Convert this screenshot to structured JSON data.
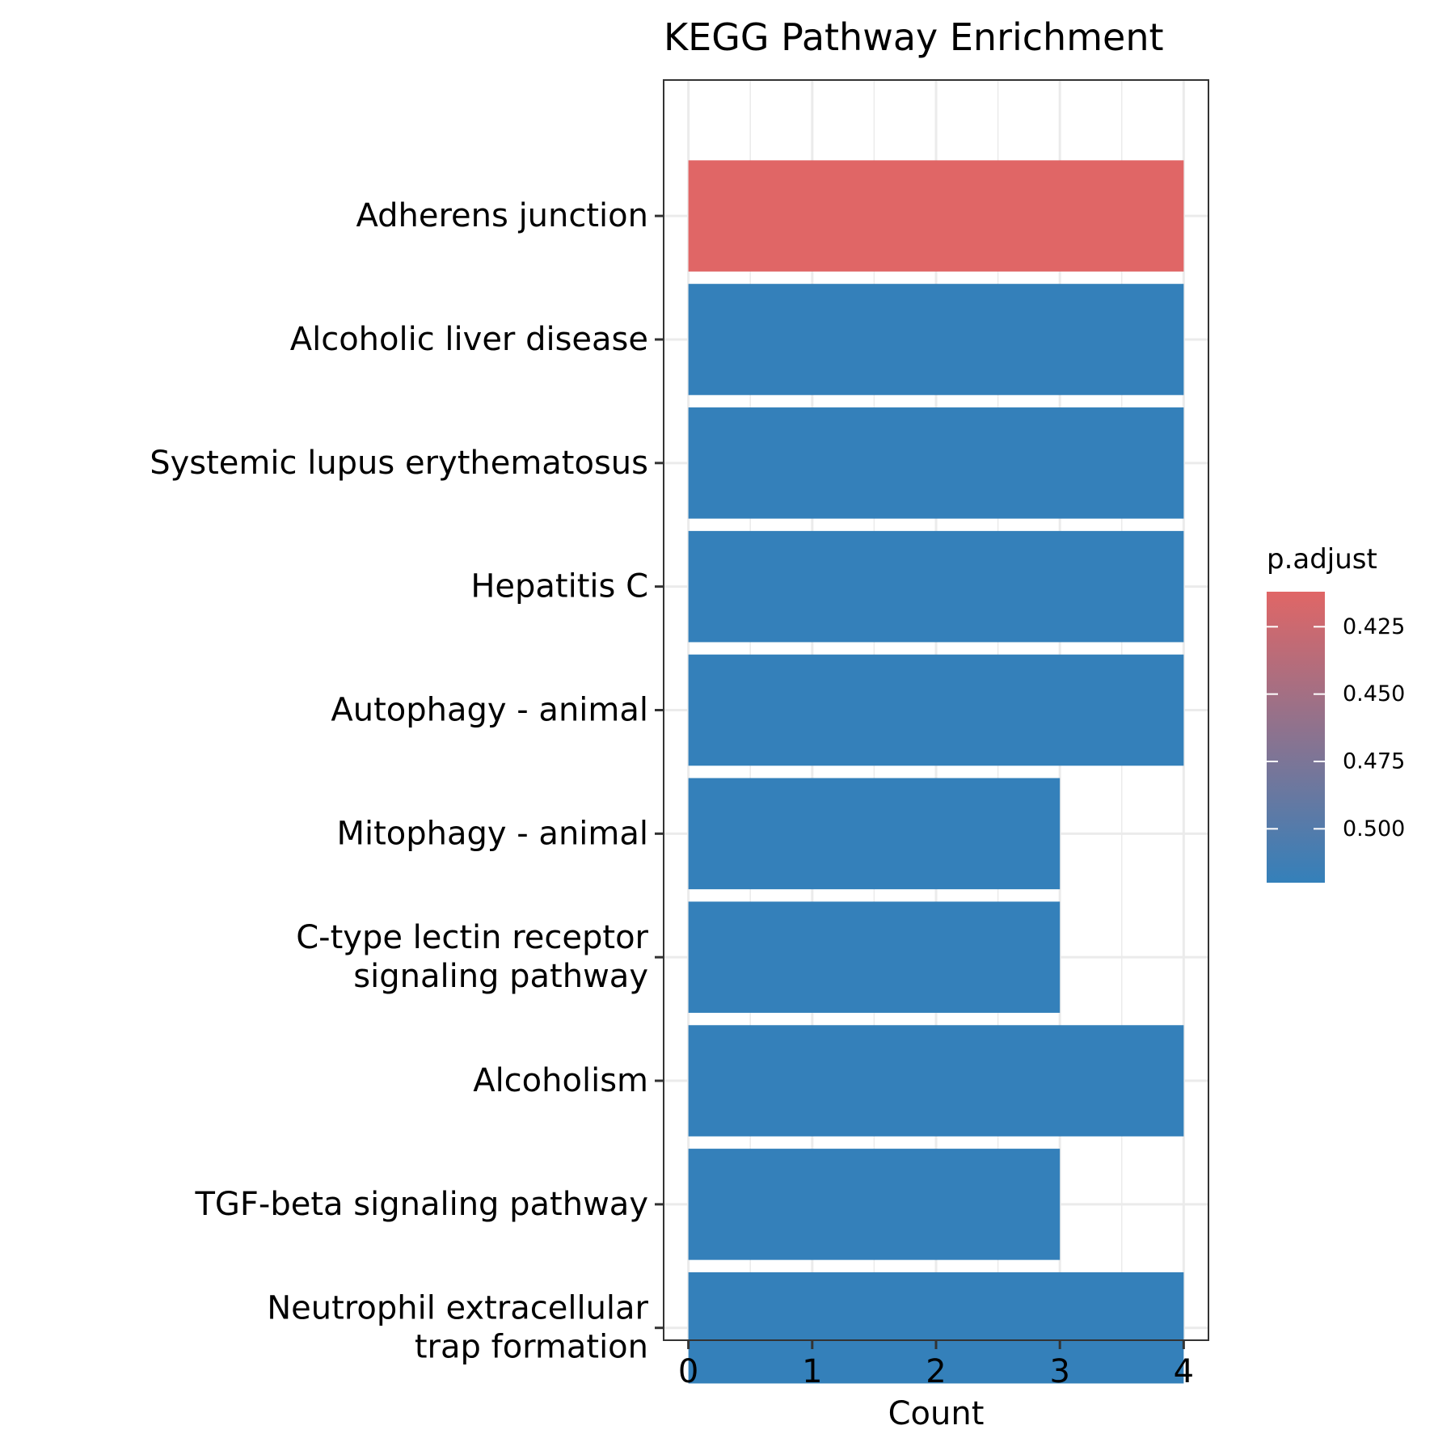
{
  "chart_data": {
    "type": "bar",
    "orientation": "horizontal",
    "title": "KEGG Pathway Enrichment",
    "xlabel": "Count",
    "ylabel": "",
    "xlim": [
      0,
      4
    ],
    "x_ticks": [
      0,
      1,
      2,
      3,
      4
    ],
    "grid": true,
    "categories": [
      [
        "Adherens junction"
      ],
      [
        "Alcoholic liver disease"
      ],
      [
        "Systemic lupus erythematosus"
      ],
      [
        "Hepatitis C"
      ],
      [
        "Autophagy - animal"
      ],
      [
        "Mitophagy - animal"
      ],
      [
        "C-type lectin receptor",
        "signaling pathway"
      ],
      [
        "Alcoholism"
      ],
      [
        "TGF-beta signaling pathway"
      ],
      [
        "Neutrophil extracellular",
        "trap formation"
      ]
    ],
    "values": [
      4,
      4,
      4,
      4,
      4,
      3,
      3,
      4,
      3,
      4
    ],
    "p_adjust": [
      0.41,
      0.52,
      0.52,
      0.52,
      0.52,
      0.52,
      0.52,
      0.52,
      0.52,
      0.52
    ],
    "legend": {
      "title": "p.adjust",
      "placement": "right",
      "ticks": [
        "0.425",
        "0.450",
        "0.475",
        "0.500"
      ],
      "tick_values": [
        0.425,
        0.45,
        0.475,
        0.5
      ],
      "range": [
        0.412,
        0.52
      ],
      "color_low": "#E06666",
      "color_high": "#3480BA"
    }
  }
}
